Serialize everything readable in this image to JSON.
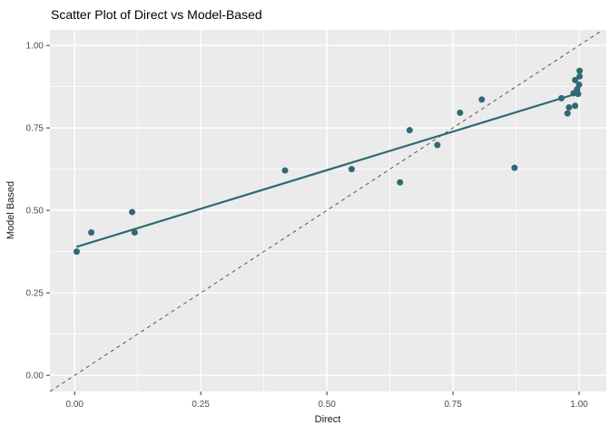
{
  "chart_data": {
    "type": "scatter",
    "title": "Scatter Plot of Direct vs Model-Based",
    "xlabel": "Direct",
    "ylabel": "Model Based",
    "xlim": [
      -0.049,
      1.054
    ],
    "ylim": [
      -0.049,
      1.047
    ],
    "x_ticks": [
      0,
      0.25,
      0.5,
      0.75,
      1.0
    ],
    "y_ticks": [
      0,
      0.25,
      0.5,
      0.75,
      1.0
    ],
    "x_tick_labels": [
      "0.00",
      "0.25",
      "0.50",
      "0.75",
      "1.00"
    ],
    "y_tick_labels": [
      "0.00",
      "0.25",
      "0.50",
      "0.75",
      "1.00"
    ],
    "x_minor_ticks": [
      0.125,
      0.375,
      0.625,
      0.875
    ],
    "y_minor_ticks": [
      0.125,
      0.375,
      0.625,
      0.875
    ],
    "grid": true,
    "legend": false,
    "points": [
      [
        0.004,
        0.375
      ],
      [
        0.033,
        0.433
      ],
      [
        0.114,
        0.495
      ],
      [
        0.119,
        0.433
      ],
      [
        0.417,
        0.621
      ],
      [
        0.549,
        0.625
      ],
      [
        0.645,
        0.585
      ],
      [
        0.664,
        0.743
      ],
      [
        0.719,
        0.698
      ],
      [
        0.764,
        0.796
      ],
      [
        0.807,
        0.836
      ],
      [
        0.872,
        0.629
      ],
      [
        0.965,
        0.84
      ],
      [
        0.977,
        0.794
      ],
      [
        0.98,
        0.812
      ],
      [
        0.992,
        0.817
      ],
      [
        0.989,
        0.855
      ],
      [
        0.998,
        0.853
      ],
      [
        0.996,
        0.867
      ],
      [
        1.0,
        0.881
      ],
      [
        0.992,
        0.895
      ],
      [
        1.001,
        0.906
      ],
      [
        1.001,
        0.923
      ]
    ],
    "trend_line": {
      "x1": 0.005,
      "y1": 0.39,
      "x2": 1.0,
      "y2": 0.856
    },
    "identity_line": {
      "style": "dashed",
      "from": [
        -0.049,
        -0.049
      ],
      "to": [
        1.047,
        1.047
      ]
    },
    "colors": {
      "point": "#2e6a74",
      "trend": "#2e6a74",
      "identity": "#555555",
      "panel_bg": "#ebebeb",
      "grid_major": "#ffffff",
      "grid_minor": "#ffffff",
      "tick_mark": "#333333",
      "tick_label": "#4d4d4d",
      "axis_title": "#1a1a1a",
      "title": "#000000"
    }
  }
}
